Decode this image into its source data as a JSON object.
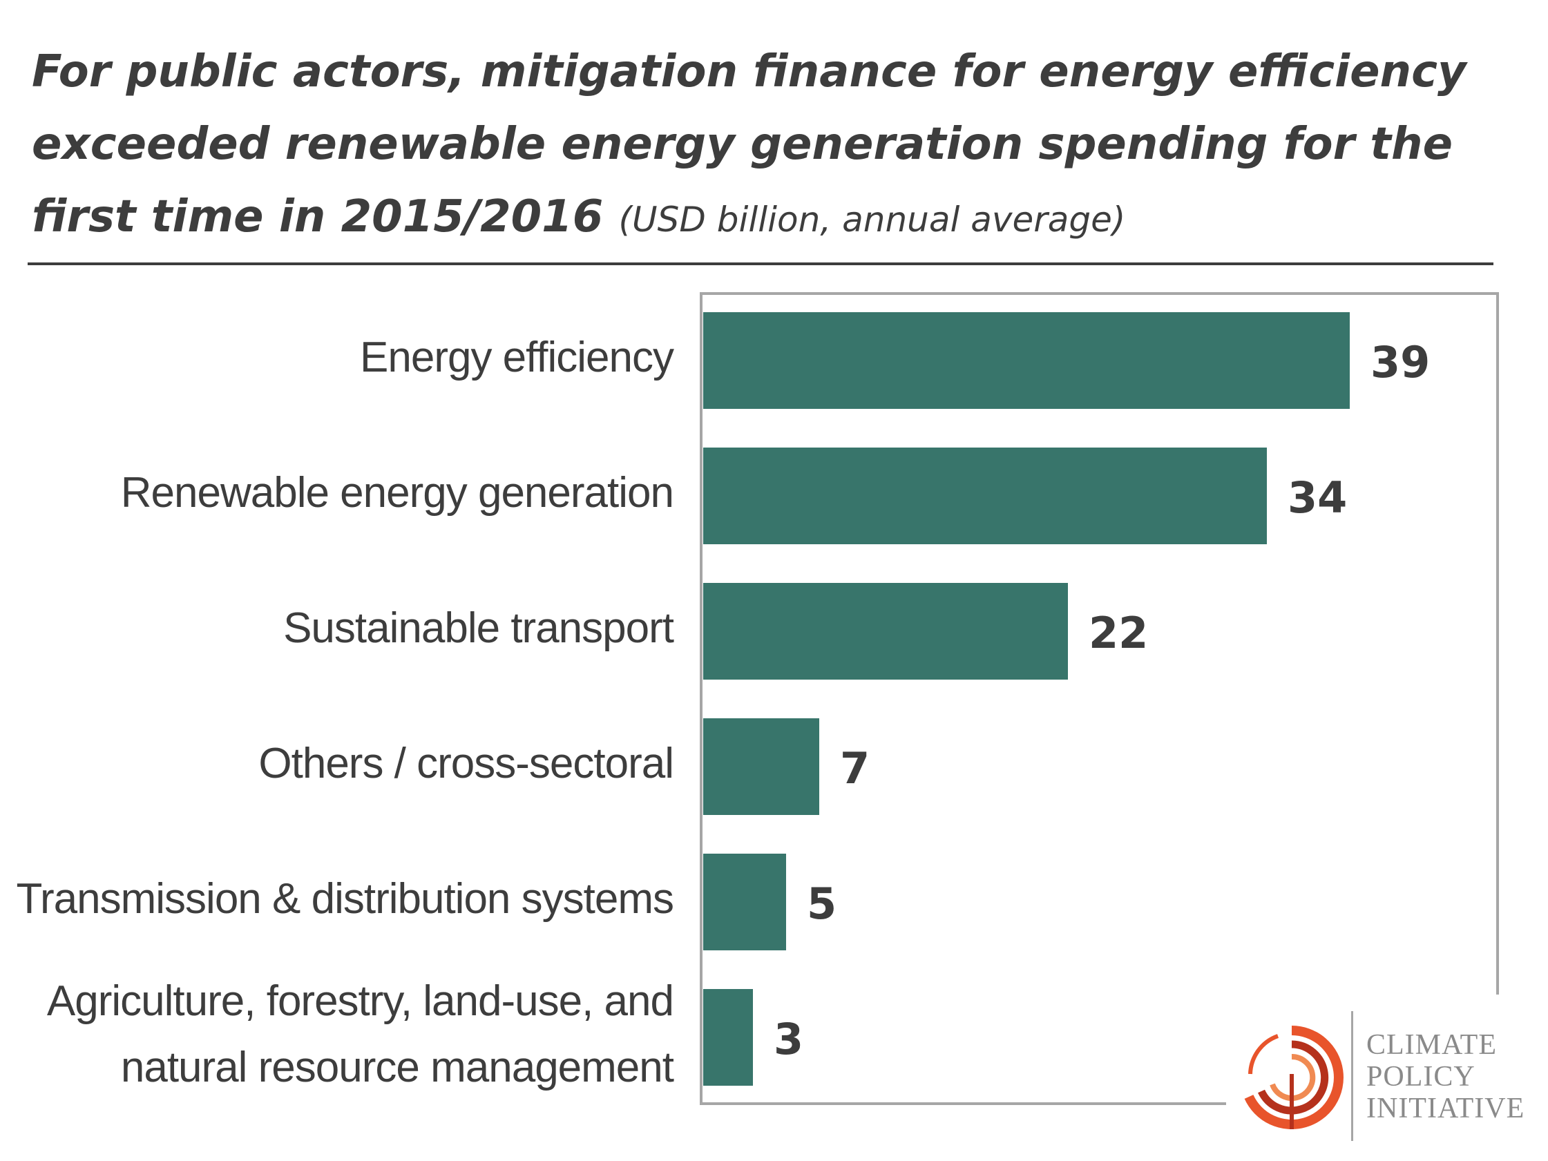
{
  "title": {
    "main": "For public actors, mitigation finance for energy efficiency exceeded renewable energy generation spending for the first time in 2015/2016",
    "unit": "(USD billion, annual average)"
  },
  "colors": {
    "bar": "#38756b",
    "text": "#3d3d3d",
    "frame": "#a6a6a6",
    "logo_accent": "#e8542b",
    "logo_dark": "#b5311c"
  },
  "chart_data": {
    "type": "bar",
    "orientation": "horizontal",
    "categories": [
      "Energy efficiency",
      "Renewable energy generation",
      "Sustainable transport",
      "Others / cross-sectoral",
      "Transmission & distribution systems",
      "Agriculture, forestry, land-use, and natural resource management"
    ],
    "category_lines": [
      [
        "Energy efficiency"
      ],
      [
        "Renewable energy generation"
      ],
      [
        "Sustainable transport"
      ],
      [
        "Others / cross-sectoral"
      ],
      [
        "Transmission & distribution systems"
      ],
      [
        "Agriculture, forestry, land-use, and",
        "natural resource management"
      ]
    ],
    "values": [
      39,
      34,
      22,
      7,
      5,
      3
    ],
    "data_labels": [
      "39",
      "34",
      "22",
      "7",
      "5",
      "3"
    ],
    "xlim": [
      0,
      48
    ],
    "grid": false,
    "title": "For public actors, mitigation finance for energy efficiency exceeded renewable energy generation spending for the first time in 2015/2016",
    "unit": "(USD billion, annual average)"
  },
  "logo": {
    "lines": [
      "CLIMATE",
      "POLICY",
      "INITIATIVE"
    ],
    "icon": "concentric-arcs-logo-icon"
  }
}
